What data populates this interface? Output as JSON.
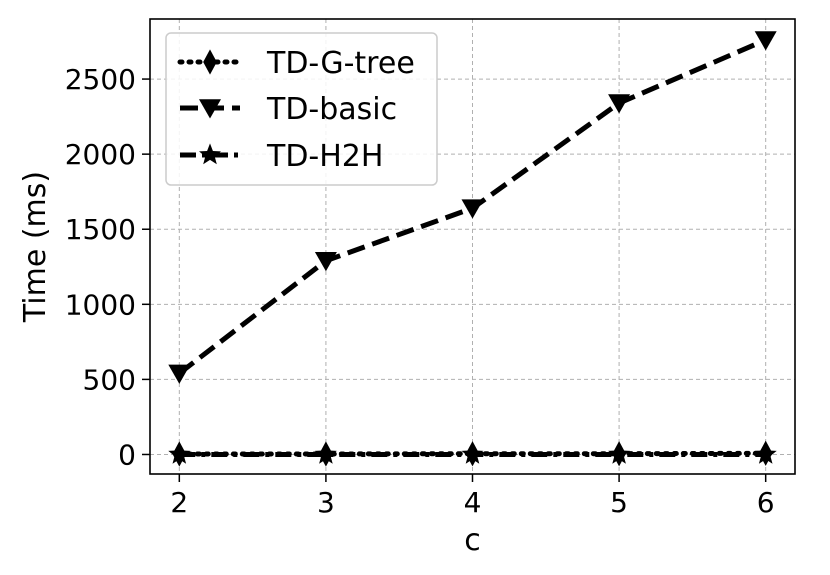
{
  "chart_data": {
    "type": "line",
    "xlabel": "c",
    "ylabel": "Time (ms)",
    "x": [
      2,
      3,
      4,
      5,
      6
    ],
    "xlim": [
      1.8,
      6.2
    ],
    "ylim": [
      -130,
      2900
    ],
    "yticks": [
      0,
      500,
      1000,
      1500,
      2000,
      2500
    ],
    "grid": true,
    "legend_position": "top-left",
    "series": [
      {
        "name": "TD-G-tree",
        "values": [
          3,
          3,
          5,
          5,
          8
        ],
        "marker": "diamond",
        "linestyle": "dotted",
        "color": "#000000"
      },
      {
        "name": "TD-basic",
        "values": [
          540,
          1290,
          1640,
          2340,
          2760
        ],
        "marker": "triangle-down",
        "linestyle": "dashed",
        "color": "#000000"
      },
      {
        "name": "TD-H2H",
        "values": [
          0,
          0,
          0,
          0,
          0
        ],
        "marker": "star",
        "linestyle": "dashdot",
        "color": "#000000"
      }
    ]
  }
}
